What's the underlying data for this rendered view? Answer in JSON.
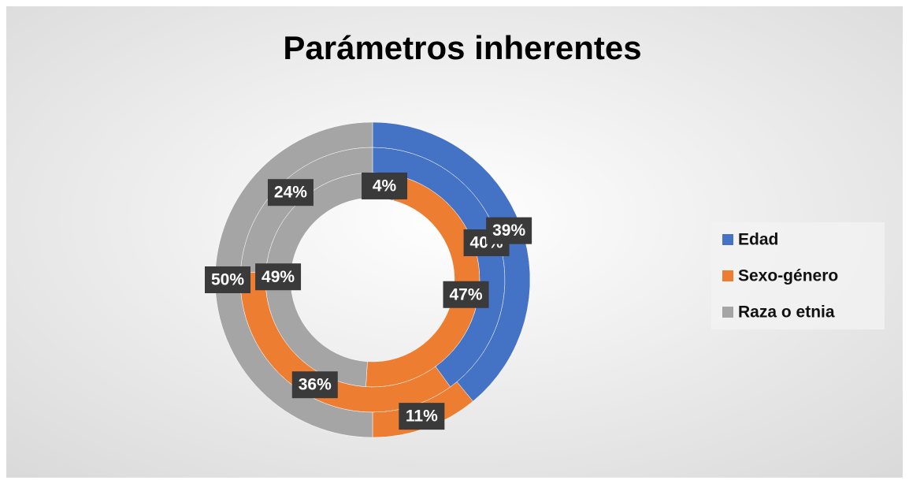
{
  "chart_data": {
    "type": "doughnut",
    "title": "Parámetros inherentes",
    "categories": [
      "Edad",
      "Sexo-género",
      "Raza o etnia"
    ],
    "colors": [
      "#4472c4",
      "#ed7d31",
      "#a5a5a5"
    ],
    "series": [
      {
        "values": [
          4,
          47,
          49
        ],
        "value_labels": [
          "4%",
          "47%",
          "49%"
        ]
      },
      {
        "values": [
          40,
          36,
          24
        ],
        "value_labels": [
          "40%",
          "36%",
          "24%"
        ]
      },
      {
        "values": [
          39,
          11,
          50
        ],
        "value_labels": [
          "39%",
          "11%",
          "50%"
        ]
      }
    ],
    "legend": "right"
  }
}
